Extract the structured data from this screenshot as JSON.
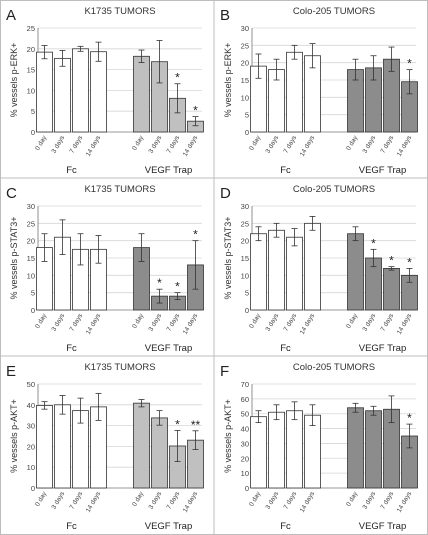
{
  "figure": {
    "group_labels": [
      "Fc",
      "VEGF Trap"
    ],
    "day_labels": [
      "0 day",
      "3 days",
      "7 days",
      "14 days"
    ]
  },
  "chart_data": [
    {
      "type": "bar",
      "panel_letter": "A",
      "title": "K1735 TUMORS",
      "ylabel": "% vessels p-ERK+",
      "ylim": [
        0,
        25
      ],
      "yticks": [
        0,
        5,
        10,
        15,
        20,
        25
      ],
      "grid": true,
      "legend": "none",
      "categories": [
        "0 day",
        "3 days",
        "7 days",
        "14 days"
      ],
      "series": [
        {
          "group": "Fc",
          "fill": "#ffffff",
          "values": [
            19.2,
            17.7,
            20.0,
            19.3
          ],
          "errors": [
            1.6,
            1.9,
            0.6,
            2.3
          ],
          "marks": [
            "",
            "",
            "",
            ""
          ]
        },
        {
          "group": "VEGF Trap",
          "fill": "#c0c0c0",
          "values": [
            18.2,
            16.9,
            8.1,
            2.6
          ],
          "errors": [
            1.5,
            5.1,
            3.5,
            1.1
          ],
          "marks": [
            "",
            "",
            "*",
            "*"
          ]
        }
      ]
    },
    {
      "type": "bar",
      "panel_letter": "B",
      "title": "Colo-205 TUMORS",
      "ylabel": "% vessels p-ERK+",
      "ylim": [
        0,
        30
      ],
      "yticks": [
        0,
        5,
        10,
        15,
        20,
        25,
        30
      ],
      "grid": true,
      "legend": "none",
      "categories": [
        "0 day",
        "3 days",
        "7 days",
        "14 days"
      ],
      "series": [
        {
          "group": "Fc",
          "fill": "#ffffff",
          "values": [
            19.0,
            18.0,
            23.0,
            22.0
          ],
          "errors": [
            3.5,
            3.0,
            2.0,
            3.5
          ],
          "marks": [
            "",
            "",
            "",
            ""
          ]
        },
        {
          "group": "VEGF Trap",
          "fill": "#8c8c8c",
          "values": [
            18.0,
            18.5,
            21.0,
            14.5
          ],
          "errors": [
            3.0,
            3.5,
            3.5,
            3.5
          ],
          "marks": [
            "",
            "",
            "",
            "*"
          ]
        }
      ]
    },
    {
      "type": "bar",
      "panel_letter": "C",
      "title": "K1735 TUMORS",
      "ylabel": "% vessels p-STAT3+",
      "ylim": [
        0,
        30
      ],
      "yticks": [
        0,
        5,
        10,
        15,
        20,
        25,
        30
      ],
      "grid": true,
      "legend": "none",
      "categories": [
        "0 day",
        "3 days",
        "7 days",
        "14 days"
      ],
      "series": [
        {
          "group": "Fc",
          "fill": "#ffffff",
          "values": [
            18.0,
            21.0,
            17.5,
            17.5
          ],
          "errors": [
            4.0,
            5.0,
            4.5,
            4.0
          ],
          "marks": [
            "",
            "",
            "",
            ""
          ]
        },
        {
          "group": "VEGF Trap",
          "fill": "#8c8c8c",
          "values": [
            18.0,
            4.0,
            4.0,
            13.0
          ],
          "errors": [
            4.0,
            2.0,
            1.0,
            7.0
          ],
          "marks": [
            "",
            "*",
            "*",
            "*"
          ]
        }
      ]
    },
    {
      "type": "bar",
      "panel_letter": "D",
      "title": "Colo-205 TUMORS",
      "ylabel": "% vessels p-STAT3+",
      "ylim": [
        0,
        30
      ],
      "yticks": [
        0,
        5,
        10,
        15,
        20,
        25,
        30
      ],
      "grid": true,
      "legend": "none",
      "categories": [
        "0 day",
        "3 days",
        "7 days",
        "14 days"
      ],
      "series": [
        {
          "group": "Fc",
          "fill": "#ffffff",
          "values": [
            22.0,
            23.0,
            21.0,
            25.0
          ],
          "errors": [
            2.0,
            2.0,
            2.5,
            2.0
          ],
          "marks": [
            "",
            "",
            "",
            ""
          ]
        },
        {
          "group": "VEGF Trap",
          "fill": "#8c8c8c",
          "values": [
            22.0,
            15.0,
            12.0,
            10.0
          ],
          "errors": [
            2.0,
            2.5,
            0.5,
            2.0
          ],
          "marks": [
            "",
            "*",
            "*",
            "*"
          ]
        }
      ]
    },
    {
      "type": "bar",
      "panel_letter": "E",
      "title": "K1735 TUMORS",
      "ylabel": "% vessels p-AKT+",
      "ylim": [
        0,
        50
      ],
      "yticks": [
        0,
        10,
        20,
        30,
        40,
        50
      ],
      "grid": true,
      "legend": "none",
      "categories": [
        "0 day",
        "3 days",
        "7 days",
        "14 days"
      ],
      "series": [
        {
          "group": "Fc",
          "fill": "#ffffff",
          "values": [
            39.7,
            40.0,
            37.2,
            39.0
          ],
          "errors": [
            1.8,
            4.5,
            6.0,
            6.5
          ],
          "marks": [
            "",
            "",
            "",
            ""
          ]
        },
        {
          "group": "VEGF Trap",
          "fill": "#c0c0c0",
          "values": [
            40.8,
            33.7,
            20.2,
            23.0
          ],
          "errors": [
            1.8,
            3.5,
            7.5,
            4.5
          ],
          "marks": [
            "",
            "",
            "*",
            "**"
          ]
        }
      ]
    },
    {
      "type": "bar",
      "panel_letter": "F",
      "title": "Colo-205 TUMORS",
      "ylabel": "% vessels p-AKT+",
      "ylim": [
        0,
        70
      ],
      "yticks": [
        0,
        10,
        20,
        30,
        40,
        50,
        60,
        70
      ],
      "grid": true,
      "legend": "none",
      "categories": [
        "0 day",
        "3 days",
        "7 days",
        "14 days"
      ],
      "series": [
        {
          "group": "Fc",
          "fill": "#ffffff",
          "values": [
            48.0,
            51.0,
            52.0,
            49.0
          ],
          "errors": [
            4.0,
            5.0,
            6.0,
            7.0
          ],
          "marks": [
            "",
            "",
            "",
            ""
          ]
        },
        {
          "group": "VEGF Trap",
          "fill": "#8c8c8c",
          "values": [
            54.0,
            52.0,
            53.0,
            35.0
          ],
          "errors": [
            3.0,
            3.0,
            9.0,
            8.0
          ],
          "marks": [
            "",
            "",
            "",
            "*"
          ]
        }
      ]
    }
  ]
}
